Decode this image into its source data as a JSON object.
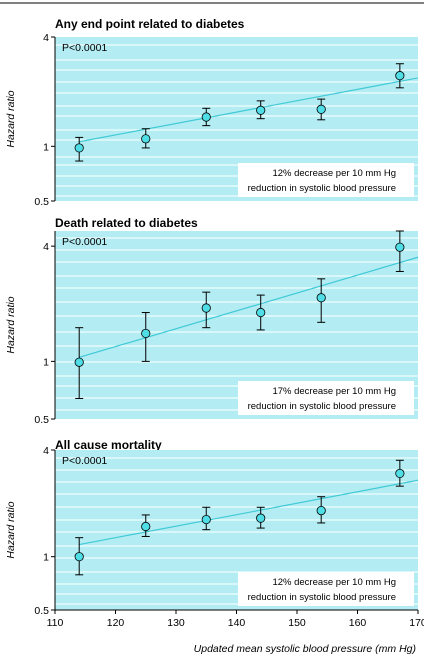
{
  "figure": {
    "xlabel": "Updated mean systolic blood pressure (mm Hg)",
    "ylabel": "Hazard ratio",
    "x_ticks": [
      "110",
      "120",
      "130",
      "140",
      "150",
      "160",
      "170"
    ],
    "colors": {
      "panel_bg": "#b3ecf2",
      "grid": "#ffffff",
      "marker_fill": "#4fdde6",
      "line": "#3fcad6",
      "axis": "#000000"
    }
  },
  "chart_data": [
    {
      "type": "scatter",
      "title": "Any end point related to diabetes",
      "p_value": "P<0.0001",
      "annotation": [
        "12% decrease per 10 mm Hg",
        "reduction in systolic blood pressure"
      ],
      "y_scale": "log",
      "ylim": [
        0.5,
        4
      ],
      "xlim": [
        110,
        170
      ],
      "y_ticks": [
        "4",
        "1",
        "0.5"
      ],
      "x": [
        114,
        125,
        135,
        144,
        154,
        167
      ],
      "y": [
        0.98,
        1.1,
        1.45,
        1.58,
        1.6,
        2.45
      ],
      "lower": [
        0.83,
        0.98,
        1.3,
        1.42,
        1.4,
        2.1
      ],
      "upper": [
        1.12,
        1.25,
        1.62,
        1.78,
        1.82,
        2.85
      ],
      "fit": {
        "x": [
          114,
          170
        ],
        "y": [
          1.06,
          2.38
        ]
      }
    },
    {
      "type": "scatter",
      "title": "Death related to diabetes",
      "p_value": "P<0.0001",
      "annotation": [
        "17% decrease per 10 mm Hg",
        "reduction in systolic blood pressure"
      ],
      "y_scale": "log",
      "ylim": [
        0.5,
        4.8
      ],
      "xlim": [
        110,
        170
      ],
      "y_ticks": [
        "4",
        "1",
        "0.5"
      ],
      "x": [
        114,
        125,
        135,
        144,
        154,
        167
      ],
      "y": [
        0.99,
        1.4,
        1.9,
        1.8,
        2.15,
        3.95
      ],
      "lower": [
        0.64,
        1.0,
        1.5,
        1.46,
        1.6,
        2.95
      ],
      "upper": [
        1.5,
        1.8,
        2.3,
        2.22,
        2.7,
        4.8
      ],
      "fit": {
        "x": [
          114,
          170
        ],
        "y": [
          1.05,
          3.5
        ]
      }
    },
    {
      "type": "scatter",
      "title": "All cause mortality",
      "p_value": "P<0.0001",
      "annotation": [
        "12% decrease per 10 mm Hg",
        "reduction in systolic blood pressure"
      ],
      "y_scale": "log",
      "ylim": [
        0.5,
        4
      ],
      "xlim": [
        110,
        170
      ],
      "y_ticks": [
        "4",
        "1",
        "0.5"
      ],
      "x": [
        114,
        125,
        135,
        144,
        154,
        167
      ],
      "y": [
        1.0,
        1.48,
        1.62,
        1.65,
        1.82,
        2.95
      ],
      "lower": [
        0.79,
        1.3,
        1.42,
        1.45,
        1.55,
        2.5
      ],
      "upper": [
        1.28,
        1.72,
        1.9,
        1.9,
        2.18,
        3.5
      ],
      "fit": {
        "x": [
          114,
          170
        ],
        "y": [
          1.17,
          2.7
        ]
      }
    }
  ]
}
